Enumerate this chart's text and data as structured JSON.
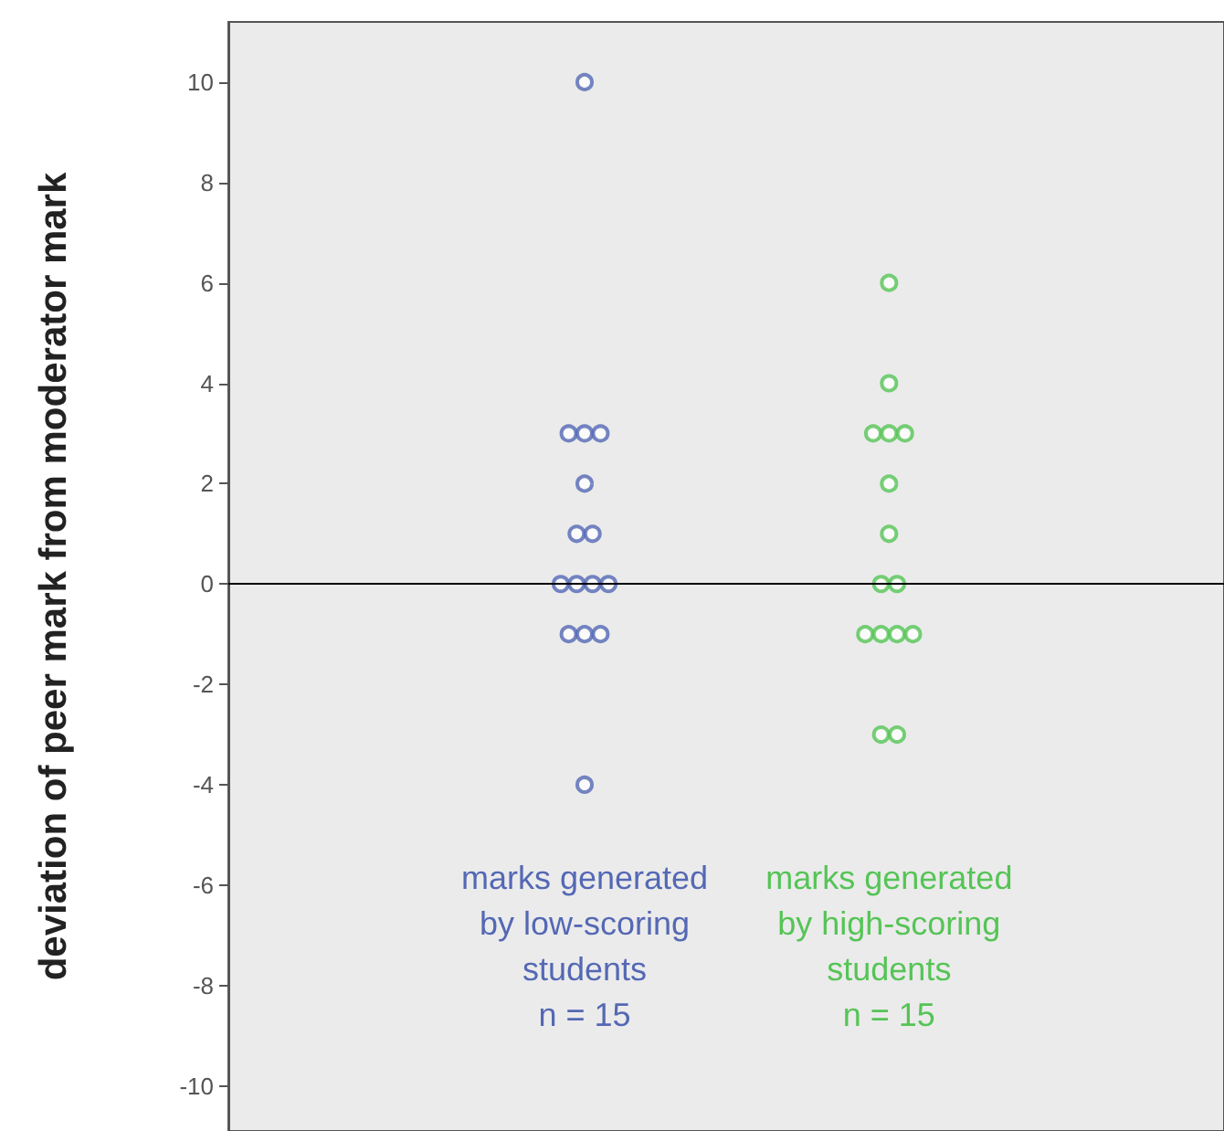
{
  "chart_data": {
    "type": "scatter",
    "ylabel": "deviation of peer mark from moderator mark",
    "categories": [
      "marks generated\nby low-scoring\nstudents\nn = 15",
      "marks generated\nby high-scoring\nstudents\nn = 15"
    ],
    "series": [
      {
        "color": "#5468b4",
        "x": [
          "marks generated\nby low-scoring\nstudents\nn = 15",
          "marks generated\nby low-scoring\nstudents\nn = 15",
          "marks generated\nby low-scoring\nstudents\nn = 15",
          "marks generated\nby low-scoring\nstudents\nn = 15",
          "marks generated\nby low-scoring\nstudents\nn = 15",
          "marks generated\nby low-scoring\nstudents\nn = 15",
          "marks generated\nby low-scoring\nstudents\nn = 15",
          "marks generated\nby low-scoring\nstudents\nn = 15",
          "marks generated\nby low-scoring\nstudents\nn = 15",
          "marks generated\nby low-scoring\nstudents\nn = 15",
          "marks generated\nby low-scoring\nstudents\nn = 15",
          "marks generated\nby low-scoring\nstudents\nn = 15",
          "marks generated\nby low-scoring\nstudents\nn = 15",
          "marks generated\nby low-scoring\nstudents\nn = 15",
          "marks generated\nby low-scoring\nstudents\nn = 15"
        ],
        "values": [
          10,
          3,
          3,
          3,
          2,
          1,
          1,
          0,
          0,
          0,
          0,
          -1,
          -1,
          -1,
          -4
        ]
      },
      {
        "color": "#55c455",
        "x": [
          "marks generated\nby high-scoring\nstudents\nn = 15",
          "marks generated\nby high-scoring\nstudents\nn = 15",
          "marks generated\nby high-scoring\nstudents\nn = 15",
          "marks generated\nby high-scoring\nstudents\nn = 15",
          "marks generated\nby high-scoring\nstudents\nn = 15",
          "marks generated\nby high-scoring\nstudents\nn = 15",
          "marks generated\nby high-scoring\nstudents\nn = 15",
          "marks generated\nby high-scoring\nstudents\nn = 15",
          "marks generated\nby high-scoring\nstudents\nn = 15",
          "marks generated\nby high-scoring\nstudents\nn = 15",
          "marks generated\nby high-scoring\nstudents\nn = 15",
          "marks generated\nby high-scoring\nstudents\nn = 15",
          "marks generated\nby high-scoring\nstudents\nn = 15",
          "marks generated\nby high-scoring\nstudents\nn = 15",
          "marks generated\nby high-scoring\nstudents\nn = 15"
        ],
        "values": [
          6,
          4,
          3,
          3,
          3,
          2,
          1,
          0,
          0,
          -1,
          -1,
          -1,
          -1,
          -3,
          -3
        ]
      }
    ],
    "ylim": [
      -10.9,
      11.2
    ],
    "yticks": [
      -10,
      -8,
      -6,
      -4,
      -2,
      0,
      2,
      4,
      6,
      8,
      10
    ],
    "ref_lines": [
      {
        "axis": "y",
        "value": 0,
        "color": "#000000"
      }
    ],
    "marker": "circle",
    "grid": false
  }
}
